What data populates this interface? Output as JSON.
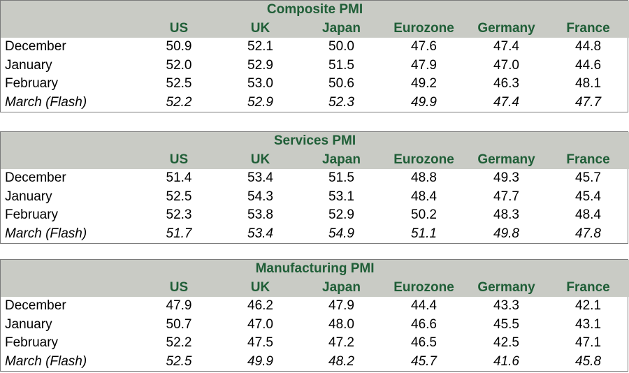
{
  "countries": [
    "US",
    "UK",
    "Japan",
    "Eurozone",
    "Germany",
    "France"
  ],
  "tables": [
    {
      "title": "Composite PMI",
      "rows": [
        {
          "label": "December",
          "values": [
            "50.9",
            "52.1",
            "50.0",
            "47.6",
            "47.4",
            "44.8"
          ]
        },
        {
          "label": "January",
          "values": [
            "52.0",
            "52.9",
            "51.5",
            "47.9",
            "47.0",
            "44.6"
          ]
        },
        {
          "label": "February",
          "values": [
            "52.5",
            "53.0",
            "50.6",
            "49.2",
            "46.3",
            "48.1"
          ]
        },
        {
          "label": "March (Flash)",
          "values": [
            "52.2",
            "52.9",
            "52.3",
            "49.9",
            "47.4",
            "47.7"
          ]
        }
      ]
    },
    {
      "title": "Services PMI",
      "rows": [
        {
          "label": "December",
          "values": [
            "51.4",
            "53.4",
            "51.5",
            "48.8",
            "49.3",
            "45.7"
          ]
        },
        {
          "label": "January",
          "values": [
            "52.5",
            "54.3",
            "53.1",
            "48.4",
            "47.7",
            "45.4"
          ]
        },
        {
          "label": "February",
          "values": [
            "52.3",
            "53.8",
            "52.9",
            "50.2",
            "48.3",
            "48.4"
          ]
        },
        {
          "label": "March (Flash)",
          "values": [
            "51.7",
            "53.4",
            "54.9",
            "51.1",
            "49.8",
            "47.8"
          ]
        }
      ]
    },
    {
      "title": "Manufacturing PMI",
      "rows": [
        {
          "label": "December",
          "values": [
            "47.9",
            "46.2",
            "47.9",
            "44.4",
            "43.3",
            "42.1"
          ]
        },
        {
          "label": "January",
          "values": [
            "50.7",
            "47.0",
            "48.0",
            "46.6",
            "45.5",
            "43.1"
          ]
        },
        {
          "label": "February",
          "values": [
            "52.2",
            "47.5",
            "47.2",
            "46.5",
            "42.5",
            "47.1"
          ]
        },
        {
          "label": "March (Flash)",
          "values": [
            "52.5",
            "49.9",
            "48.2",
            "45.7",
            "41.6",
            "45.8"
          ]
        }
      ]
    }
  ]
}
